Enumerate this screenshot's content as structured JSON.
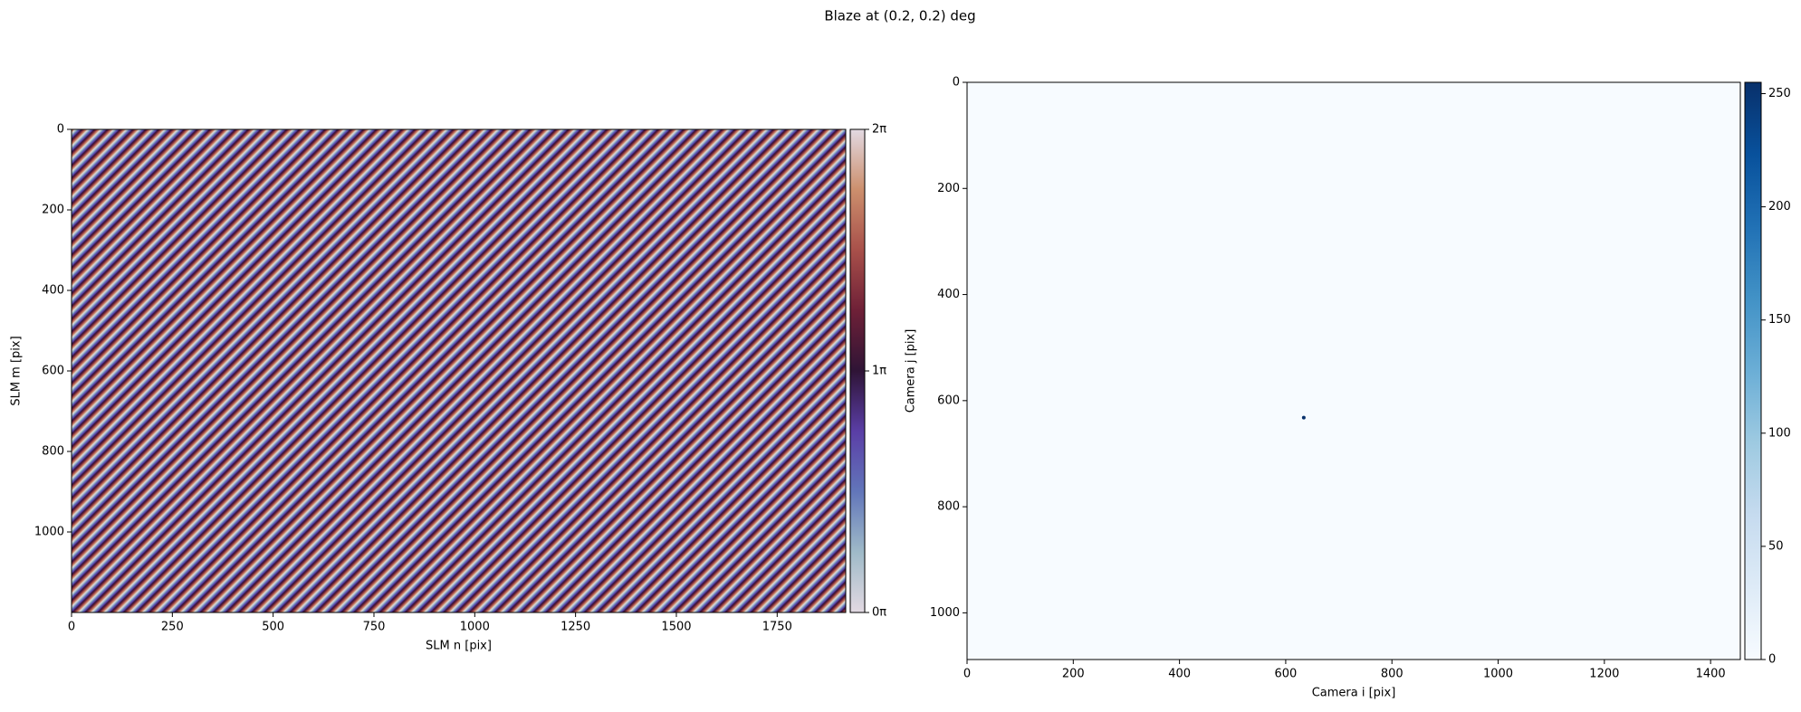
{
  "title": "Blaze at (0.2, 0.2) deg",
  "chart_data": [
    {
      "type": "image",
      "xlabel": "SLM n [pix]",
      "ylabel": "SLM m [pix]",
      "xlim": [
        0,
        1920
      ],
      "ylim": [
        1200,
        0
      ],
      "xticks": [
        0,
        250,
        500,
        750,
        1000,
        1250,
        1500,
        1750
      ],
      "yticks": [
        0,
        200,
        400,
        600,
        800,
        1000
      ],
      "colormap": [
        "#e2d9e2",
        "#9fbac8",
        "#6276ba",
        "#5a3ea6",
        "#2f1436",
        "#6e2037",
        "#a8504a",
        "#cc8f6d",
        "#e2d9e2"
      ],
      "colorbar": {
        "lim": [
          0,
          2
        ],
        "ticks": [
          {
            "value": 0,
            "label": "0π"
          },
          {
            "value": 1,
            "label": "1π"
          },
          {
            "value": 2,
            "label": "2π"
          }
        ]
      }
    },
    {
      "type": "image",
      "xlabel": "Camera i [pix]",
      "ylabel": "Camera j [pix]",
      "xlim": [
        0,
        1456
      ],
      "ylim": [
        1088,
        0
      ],
      "xticks": [
        0,
        200,
        400,
        600,
        800,
        1000,
        1200,
        1400
      ],
      "yticks": [
        0,
        200,
        400,
        600,
        800,
        1000
      ],
      "x": [
        634
      ],
      "y": [
        632
      ],
      "values": [
        255
      ],
      "colormap": [
        "#f7fbff",
        "#deebf7",
        "#c6dbef",
        "#9ecae1",
        "#6baed6",
        "#4292c6",
        "#2171b5",
        "#08519c",
        "#08306b"
      ],
      "colorbar": {
        "lim": [
          0,
          255
        ],
        "ticks": [
          0,
          50,
          100,
          150,
          200,
          250
        ]
      }
    }
  ]
}
